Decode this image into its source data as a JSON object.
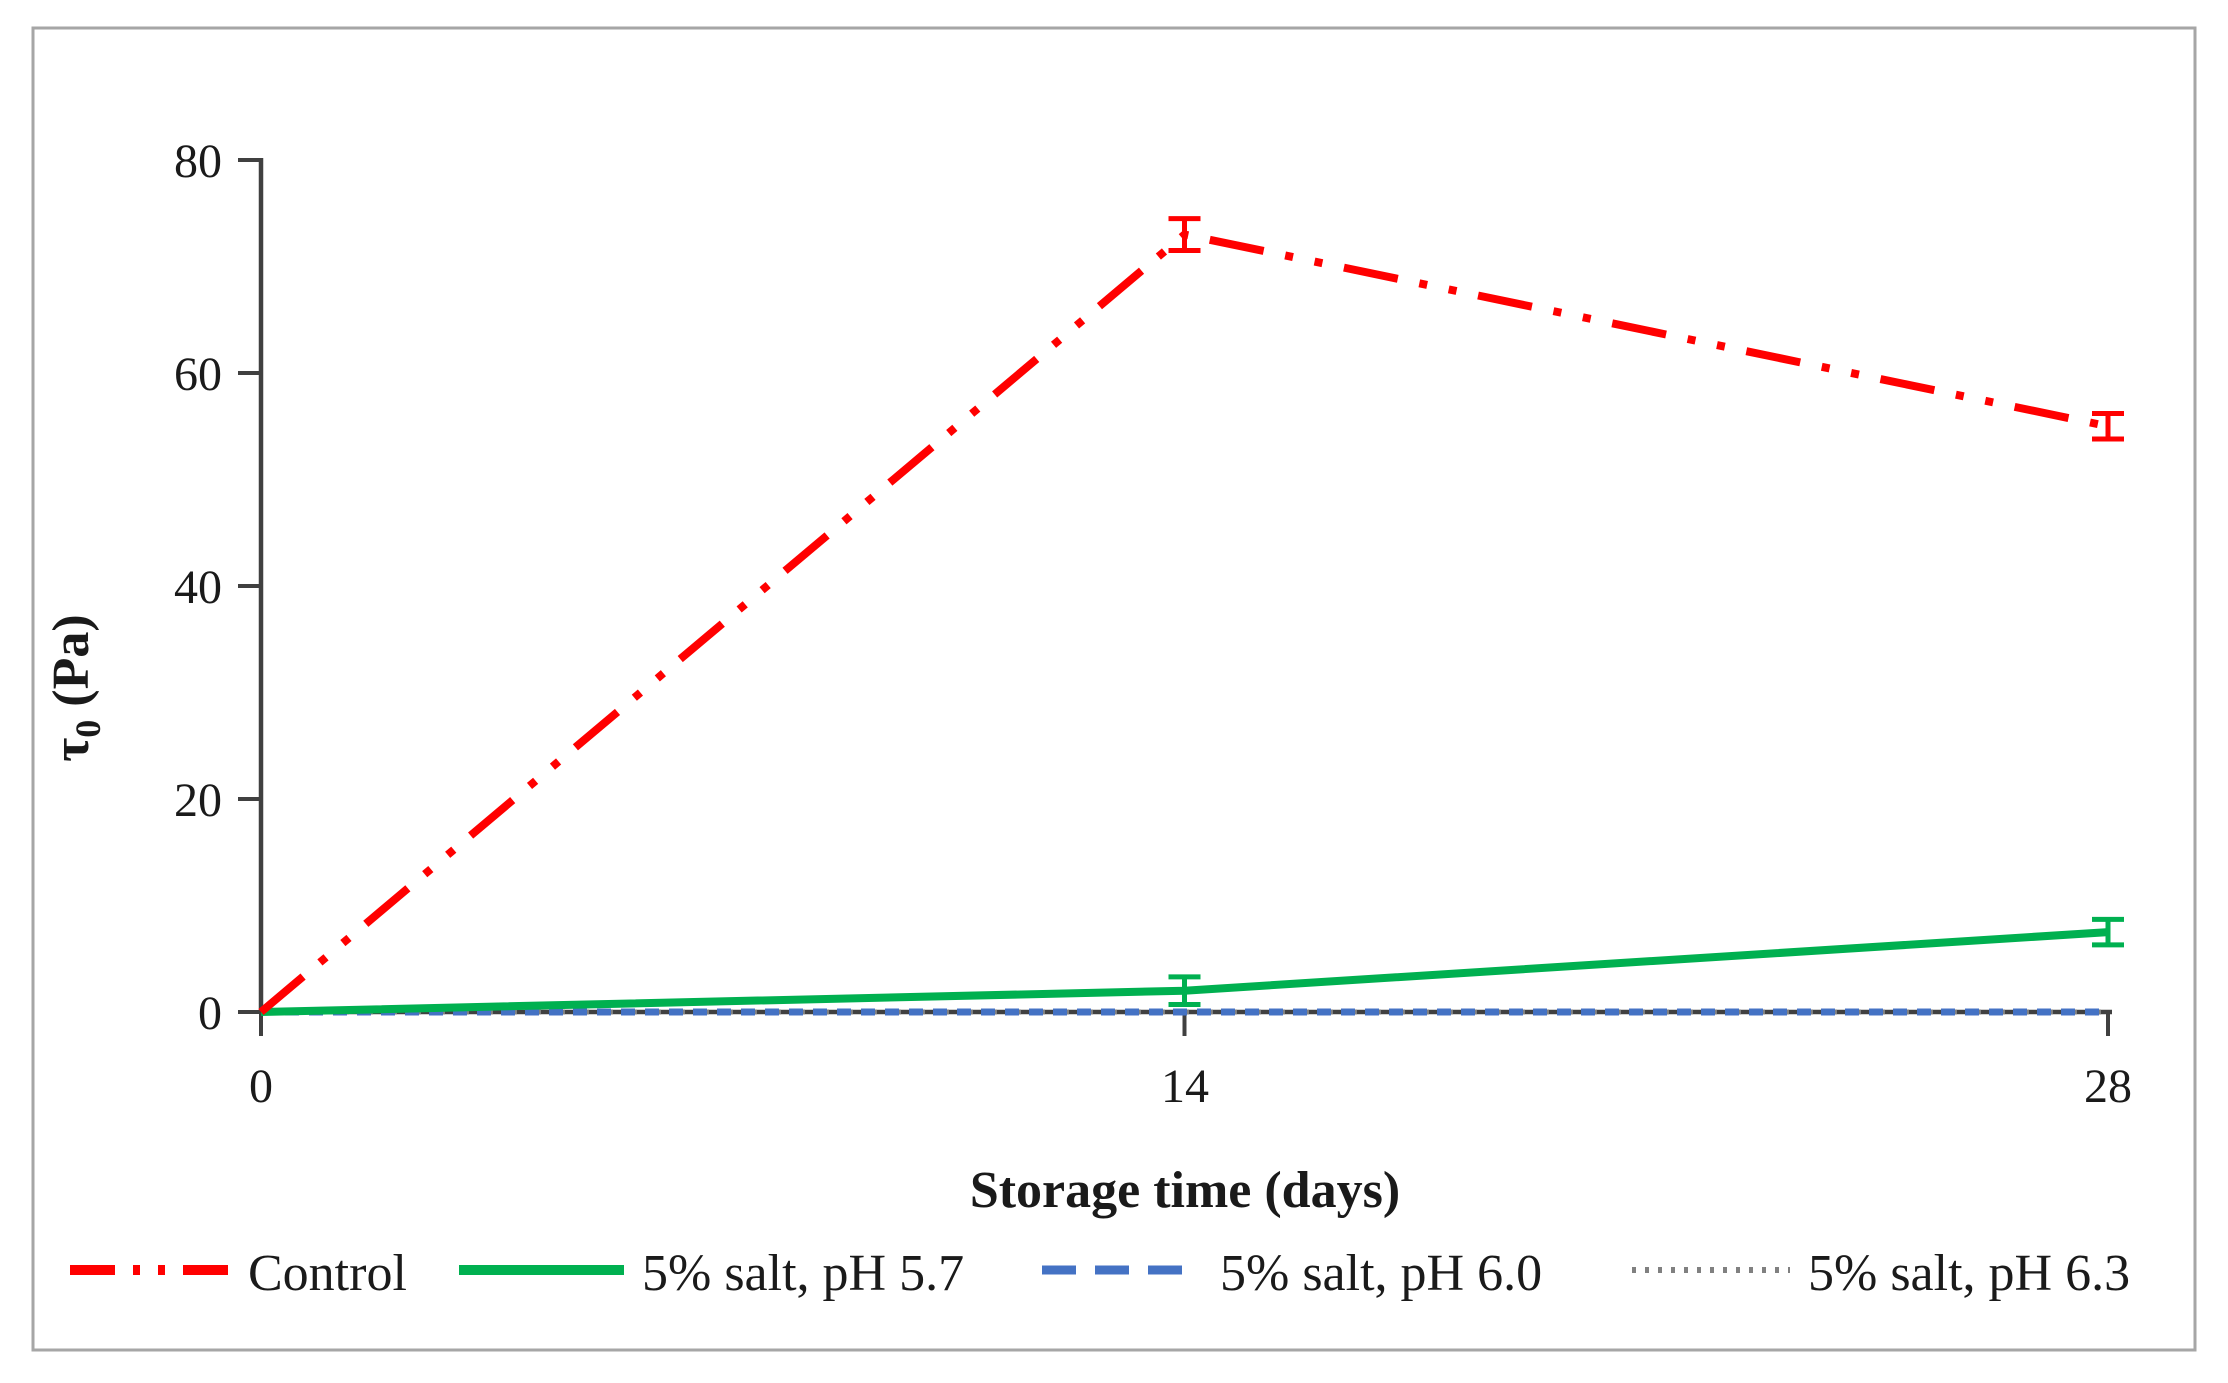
{
  "chart_data": {
    "type": "line",
    "title": "",
    "xlabel": "Storage time (days)",
    "ylabel": "τ0 (Pa)",
    "ylabel_tau": "τ",
    "ylabel_sub": "0",
    "ylabel_rest": " (Pa)",
    "x": [
      0,
      14,
      28
    ],
    "xlim": [
      0,
      28
    ],
    "ylim": [
      0,
      80
    ],
    "xticks": [
      "0",
      "14",
      "28"
    ],
    "yticks": [
      "0",
      "20",
      "40",
      "60",
      "80"
    ],
    "xticks_values": [
      0,
      14,
      28
    ],
    "yticks_values": [
      0,
      20,
      40,
      60,
      80
    ],
    "grid": false,
    "legend_position": "bottom",
    "axis_color": "#404040",
    "frame_color": "#a6a6a6",
    "series": [
      {
        "name": "Control",
        "color": "#ff0000",
        "style": "dash-dot-dot",
        "values": [
          0,
          73,
          55
        ],
        "errors": [
          0,
          1.5,
          1.2
        ]
      },
      {
        "name": "5% salt, pH 5.7",
        "color": "#00b050",
        "style": "solid",
        "values": [
          0,
          2,
          7.5
        ],
        "errors": [
          0,
          1.3,
          1.2
        ]
      },
      {
        "name": "5% salt, pH 6.0",
        "color": "#4472c4",
        "style": "dashed",
        "values": [
          0,
          0,
          0
        ],
        "errors": [
          0,
          0,
          0
        ]
      },
      {
        "name": "5% salt, pH 6.3",
        "color": "#808080",
        "style": "dotted",
        "values": [
          0,
          0,
          0
        ],
        "errors": [
          0,
          0,
          0
        ]
      }
    ]
  }
}
